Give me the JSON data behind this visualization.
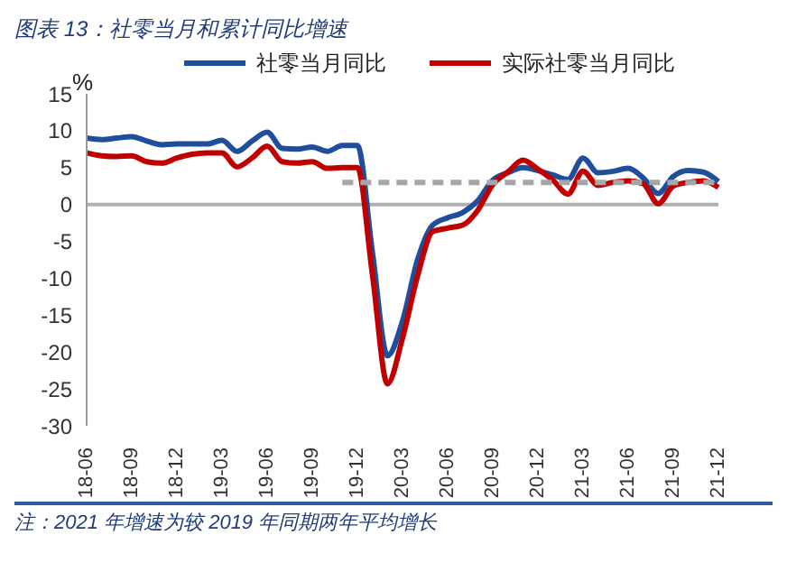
{
  "chart_data": {
    "type": "line",
    "title": "图表 13：社零当月和累计同比增速",
    "ylabel": "%",
    "categories": [
      "18-06",
      null,
      null,
      "18-09",
      null,
      null,
      "18-12",
      null,
      null,
      "19-03",
      null,
      null,
      "19-06",
      null,
      null,
      "19-09",
      null,
      null,
      "19-12",
      null,
      null,
      "20-03",
      null,
      null,
      "20-06",
      null,
      null,
      "20-09",
      null,
      null,
      "20-12",
      null,
      null,
      "21-03",
      null,
      null,
      "21-06",
      null,
      null,
      "21-09",
      null,
      null,
      "21-12"
    ],
    "series": [
      {
        "name": "社零当月同比",
        "color": "#1f4e9c",
        "values": [
          9.0,
          8.8,
          9.0,
          9.2,
          8.6,
          8.1,
          8.2,
          8.2,
          8.2,
          8.7,
          7.2,
          8.6,
          9.8,
          7.6,
          7.5,
          7.8,
          7.2,
          8.0,
          8.0,
          -6.5,
          -20.5,
          -15.8,
          -7.5,
          -2.8,
          -1.8,
          -1.1,
          0.5,
          3.3,
          4.3,
          5.0,
          4.6,
          4.0,
          3.4,
          6.3,
          4.3,
          4.5,
          4.9,
          3.6,
          1.5,
          3.8,
          4.6,
          4.4,
          3.1
        ]
      },
      {
        "name": "实际社零当月同比",
        "color": "#c00000",
        "values": [
          7.0,
          6.6,
          6.5,
          6.6,
          5.8,
          5.6,
          6.3,
          6.8,
          7.0,
          7.0,
          5.1,
          6.3,
          7.9,
          5.8,
          5.6,
          5.8,
          4.9,
          5.0,
          5.0,
          -9.5,
          -24.3,
          -18.1,
          -9.7,
          -3.7,
          -3.2,
          -2.8,
          -0.8,
          2.7,
          4.4,
          6.0,
          4.8,
          3.3,
          1.4,
          4.5,
          2.6,
          3.0,
          3.2,
          2.8,
          0.1,
          2.5,
          3.0,
          3.2,
          2.3
        ]
      },
      {
        "color": "#a6a6a6",
        "line_style": "dashed",
        "values": [
          null,
          null,
          null,
          null,
          null,
          null,
          null,
          null,
          null,
          null,
          null,
          null,
          null,
          null,
          null,
          null,
          null,
          3,
          3,
          3,
          3,
          3,
          3,
          3,
          3,
          3,
          3,
          3,
          3,
          3,
          3,
          3,
          3,
          3,
          3,
          3,
          3,
          3,
          3,
          3,
          3,
          3,
          3
        ]
      }
    ],
    "ylim": [
      -30,
      15
    ],
    "yticks": [
      -30,
      -25,
      -20,
      -15,
      -10,
      -5,
      0,
      5,
      10,
      15
    ],
    "grid": false,
    "legend": "top",
    "marker": "none",
    "line_style": "solid",
    "annotations": [
      "注：2021 年增速为较 2019 年同期两年平均增长"
    ]
  }
}
